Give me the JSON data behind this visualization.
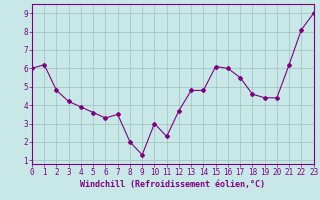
{
  "x": [
    0,
    1,
    2,
    3,
    4,
    5,
    6,
    7,
    8,
    9,
    10,
    11,
    12,
    13,
    14,
    15,
    16,
    17,
    18,
    19,
    20,
    21,
    22,
    23
  ],
  "y": [
    6.0,
    6.2,
    4.8,
    4.2,
    3.9,
    3.6,
    3.3,
    3.5,
    2.0,
    1.3,
    3.0,
    2.3,
    3.7,
    4.8,
    4.8,
    6.1,
    6.0,
    5.5,
    4.6,
    4.4,
    4.4,
    6.2,
    8.1,
    9.0
  ],
  "line_color": "#800080",
  "marker": "D",
  "marker_size": 2.0,
  "bg_color": "#c8e8e8",
  "grid_color": "#a0c0c0",
  "xlabel": "Windchill (Refroidissement éolien,°C)",
  "xlabel_color": "#800080",
  "tick_color": "#800080",
  "xlim": [
    0,
    23
  ],
  "ylim": [
    0.8,
    9.5
  ],
  "yticks": [
    1,
    2,
    3,
    4,
    5,
    6,
    7,
    8,
    9
  ],
  "xticks": [
    0,
    1,
    2,
    3,
    4,
    5,
    6,
    7,
    8,
    9,
    10,
    11,
    12,
    13,
    14,
    15,
    16,
    17,
    18,
    19,
    20,
    21,
    22,
    23
  ],
  "tick_fontsize": 5.5,
  "xlabel_fontsize": 6.0,
  "linewidth": 0.8
}
